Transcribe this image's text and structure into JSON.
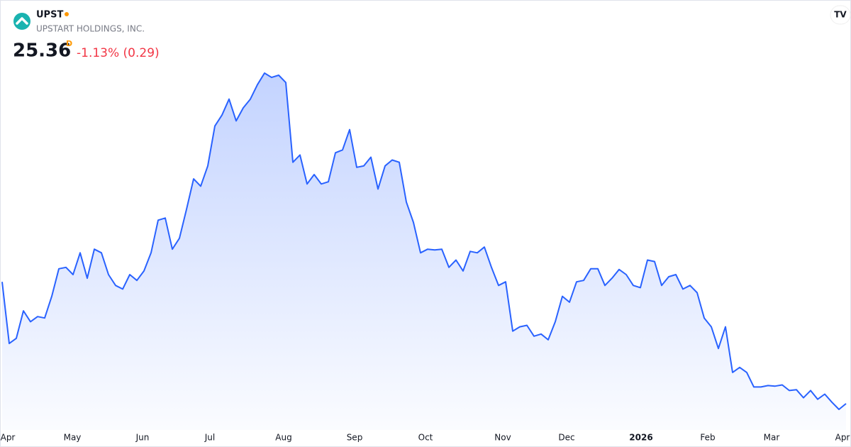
{
  "header": {
    "ticker": "UPST",
    "name": "UPSTART HOLDINGS, INC.",
    "price": "25.36",
    "interval": "D",
    "change": "-1.13% (0.29)"
  },
  "chart_data": {
    "type": "area",
    "color": "#2962ff",
    "values": [
      45.83,
      35.47,
      36.33,
      40.95,
      39.13,
      39.98,
      39.74,
      43.39,
      48.02,
      48.26,
      47.04,
      50.7,
      46.43,
      51.31,
      50.7,
      47.04,
      45.22,
      44.61,
      47.04,
      46.07,
      47.65,
      50.7,
      56.18,
      56.54,
      51.31,
      53.14,
      58.01,
      63.12,
      61.9,
      65.31,
      72.01,
      73.84,
      76.52,
      72.86,
      75.06,
      76.52,
      78.96,
      80.9,
      80.17,
      80.54,
      79.32,
      65.92,
      67.14,
      62.27,
      63.85,
      62.27,
      62.63,
      67.51,
      67.99,
      71.4,
      65.07,
      65.31,
      66.77,
      61.42,
      65.31,
      66.29,
      65.92,
      59.22,
      55.81,
      50.7,
      51.31,
      51.18,
      51.31,
      48.26,
      49.48,
      47.65,
      50.94,
      50.7,
      51.67,
      48.26,
      45.22,
      45.83,
      37.54,
      38.27,
      38.52,
      36.69,
      37.05,
      36.08,
      39.13,
      43.39,
      42.41,
      45.83,
      46.07,
      48.02,
      48.02,
      45.22,
      46.43,
      47.9,
      47.04,
      45.22,
      44.85,
      49.48,
      49.24,
      45.22,
      46.68,
      47.04,
      44.61,
      45.22,
      44.0,
      39.74,
      38.27,
      34.62,
      38.27,
      30.6,
      31.45,
      30.6,
      28.16,
      28.16,
      28.4,
      28.3,
      28.5,
      27.56,
      27.7,
      26.34,
      27.56,
      26.1,
      26.95,
      25.61,
      24.39,
      25.36
    ],
    "xlim": [
      0,
      119
    ],
    "xticks": [
      {
        "value": 0.8,
        "label": "Apr"
      },
      {
        "value": 9.9,
        "label": "May"
      },
      {
        "value": 19.8,
        "label": "Jun"
      },
      {
        "value": 29.3,
        "label": "Jul"
      },
      {
        "value": 39.7,
        "label": "Aug"
      },
      {
        "value": 49.7,
        "label": "Sep"
      },
      {
        "value": 59.7,
        "label": "Oct"
      },
      {
        "value": 70.6,
        "label": "Nov"
      },
      {
        "value": 79.6,
        "label": "Dec"
      },
      {
        "value": 90.1,
        "label": "2026"
      },
      {
        "value": 99.5,
        "label": "Feb"
      },
      {
        "value": 108.5,
        "label": "Mar"
      },
      {
        "value": 118.5,
        "label": "Apr"
      }
    ]
  }
}
